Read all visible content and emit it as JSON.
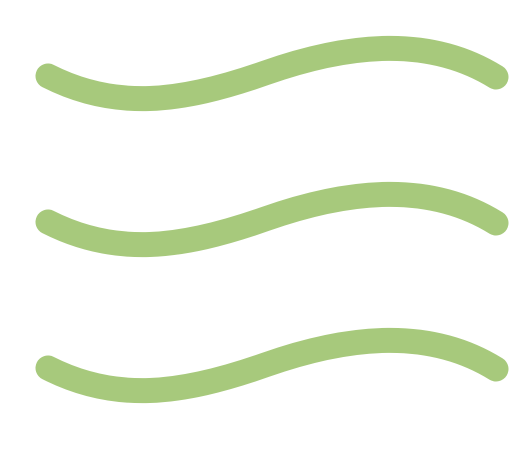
{
  "icon": {
    "name": "waves-icon",
    "color": "#a7c97c",
    "wave_count": 3
  }
}
